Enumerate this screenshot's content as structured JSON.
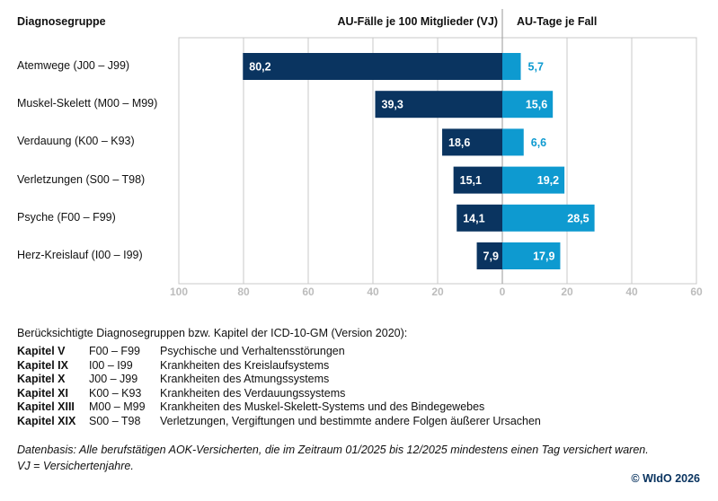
{
  "chart_data": {
    "type": "bar",
    "orientation": "horizontal-diverging",
    "row_header": "Diagnosegruppe",
    "categories": [
      "Atemwege (J00 – J99)",
      "Muskel-Skelett (M00 – M99)",
      "Verdauung (K00 – K93)",
      "Verletzungen (S00 – T98)",
      "Psyche (F00 – F99)",
      "Herz-Kreislauf (I00 – I99)"
    ],
    "series": [
      {
        "name": "AU-Fälle je 100 Mitglieder (VJ)",
        "values": [
          80.2,
          39.3,
          18.6,
          15.1,
          14.1,
          7.9
        ],
        "labels": [
          "80,2",
          "39,3",
          "18,6",
          "15,1",
          "14,1",
          "7,9"
        ],
        "color": "#0a3460",
        "direction": "left",
        "xlim": [
          0,
          100
        ]
      },
      {
        "name": "AU-Tage je Fall",
        "values": [
          5.7,
          15.6,
          6.6,
          19.2,
          28.5,
          17.9
        ],
        "labels": [
          "5,7",
          "15,6",
          "6,6",
          "19,2",
          "28,5",
          "17,9"
        ],
        "color": "#0e9ad0",
        "direction": "right",
        "xlim": [
          0,
          60
        ]
      }
    ],
    "xticks_left": [
      "100",
      "80",
      "60",
      "40",
      "20"
    ],
    "xtick_zero": "0",
    "xticks_right": [
      "20",
      "40",
      "60"
    ],
    "grid": true
  },
  "notes": {
    "intro": "Berücksichtigte Diagnosegruppen bzw. Kapitel der ICD-10-GM (Version 2020):",
    "chapters": [
      {
        "kapitel": "Kapitel V",
        "range": "F00 – F99",
        "desc": "Psychische und Verhaltensstörungen"
      },
      {
        "kapitel": "Kapitel IX",
        "range": "I00 – I99",
        "desc": "Krankheiten des Kreislaufsystems"
      },
      {
        "kapitel": "Kapitel X",
        "range": "J00 – J99",
        "desc": "Krankheiten des Atmungssystems"
      },
      {
        "kapitel": "Kapitel XI",
        "range": "K00 – K93",
        "desc": "Krankheiten des Verdauungssystems"
      },
      {
        "kapitel": "Kapitel XIII",
        "range": "M00 – M99",
        "desc": "Krankheiten des Muskel-Skelett-Systems und des Bindegewebes"
      },
      {
        "kapitel": "Kapitel XIX",
        "range": "S00 – T98",
        "desc": "Verletzungen, Vergiftungen und bestimmte andere Folgen äußerer Ursachen"
      }
    ],
    "source": "Datenbasis: Alle berufstätigen AOK-Versicherten, die im Zeitraum 01/2025 bis 12/2025 mindestens einen Tag versichert waren.",
    "abbrev": "VJ = Versichertenjahre.",
    "copyright": "© WIdO 2026"
  }
}
